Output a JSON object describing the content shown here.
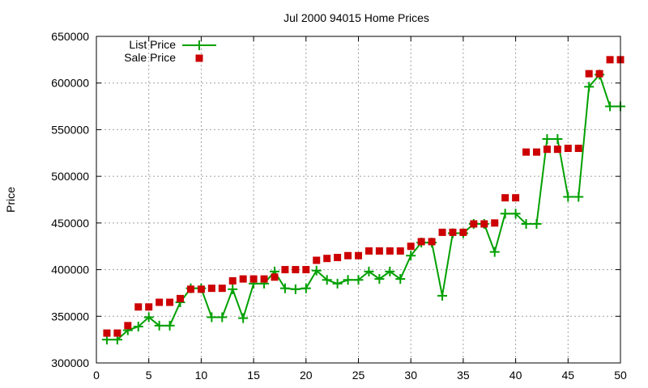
{
  "chart_data": {
    "type": "line",
    "title": "Jul 2000 94015 Home Prices",
    "xlabel": "",
    "ylabel": "Price",
    "xlim": [
      0,
      50
    ],
    "ylim": [
      300000,
      650000
    ],
    "grid": true,
    "legend_position": "top-left",
    "x_ticks": [
      "0",
      "5",
      "10",
      "15",
      "20",
      "25",
      "30",
      "35",
      "40",
      "45",
      "50"
    ],
    "y_ticks": [
      "300000",
      "350000",
      "400000",
      "450000",
      "500000",
      "550000",
      "600000",
      "650000"
    ],
    "x": [
      1,
      2,
      3,
      4,
      5,
      6,
      7,
      8,
      9,
      10,
      11,
      12,
      13,
      14,
      15,
      16,
      17,
      18,
      19,
      20,
      21,
      22,
      23,
      24,
      25,
      26,
      27,
      28,
      29,
      30,
      31,
      32,
      33,
      34,
      35,
      36,
      37,
      38,
      39,
      40,
      41,
      42,
      43,
      44,
      45,
      46,
      47,
      48,
      49,
      50
    ],
    "series": [
      {
        "name": "List Price",
        "style": "linespoints",
        "color": "#00a000",
        "values": [
          325000,
          325000,
          335000,
          339000,
          349000,
          340000,
          340000,
          365000,
          380000,
          380000,
          349000,
          349000,
          379000,
          348000,
          385000,
          385000,
          398000,
          380000,
          379000,
          380000,
          399000,
          389000,
          385000,
          389000,
          389000,
          398000,
          390000,
          398000,
          390000,
          415000,
          429000,
          429000,
          372000,
          439000,
          439000,
          449000,
          449000,
          419000,
          460000,
          460000,
          449000,
          449000,
          540000,
          540000,
          478000,
          478000,
          596000,
          609000,
          575000,
          575000
        ]
      },
      {
        "name": "Sale Price",
        "style": "points",
        "color": "#cc0000",
        "values": [
          332000,
          332000,
          340000,
          360000,
          360000,
          365000,
          365000,
          369000,
          379000,
          379000,
          380000,
          380000,
          388000,
          390000,
          390000,
          390000,
          392000,
          400000,
          400000,
          400000,
          410000,
          412000,
          413000,
          415000,
          415000,
          420000,
          420000,
          420000,
          420000,
          425000,
          430000,
          430000,
          440000,
          440000,
          440000,
          449000,
          449000,
          450000,
          477000,
          477000,
          526000,
          526000,
          529000,
          529000,
          530000,
          530000,
          610000,
          610000,
          625000,
          625000
        ]
      }
    ]
  }
}
